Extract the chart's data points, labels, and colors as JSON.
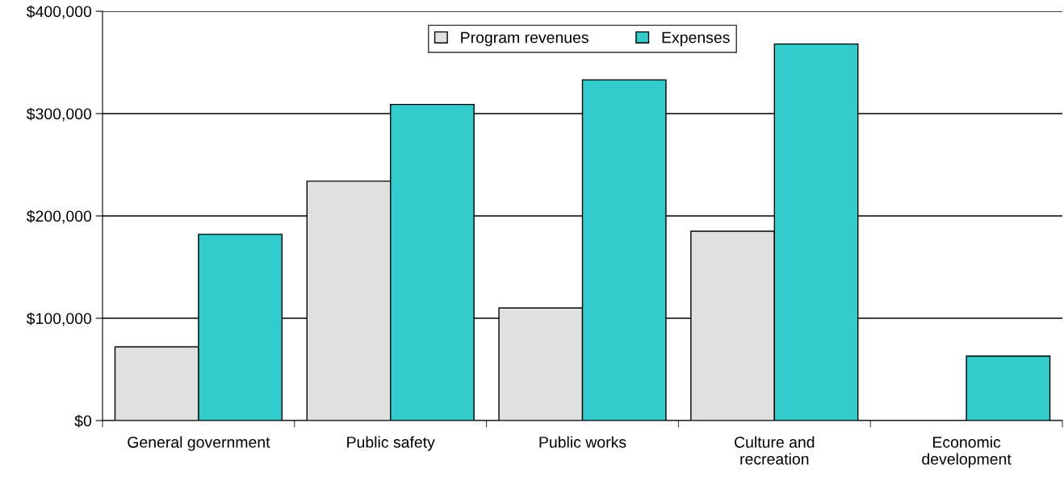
{
  "chart_data": {
    "type": "bar",
    "categories": [
      "General government",
      "Public safety",
      "Public works",
      "Culture and\nrecreation",
      "Economic\ndevelopment"
    ],
    "series": [
      {
        "name": "Program revenues",
        "color": "#e0e0e0",
        "values": [
          72000,
          234000,
          110000,
          185000,
          null
        ]
      },
      {
        "name": "Expenses",
        "color": "#33cccc",
        "values": [
          182000,
          309000,
          333000,
          368000,
          63000
        ]
      }
    ],
    "ylim": [
      0,
      400000
    ],
    "yticks": [
      {
        "value": 0,
        "label": "$0"
      },
      {
        "value": 100000,
        "label": "$100,000"
      },
      {
        "value": 200000,
        "label": "$200,000"
      },
      {
        "value": 300000,
        "label": "$300,000"
      },
      {
        "value": 400000,
        "label": "$400,000"
      }
    ],
    "grid": "y",
    "legend": "top"
  }
}
